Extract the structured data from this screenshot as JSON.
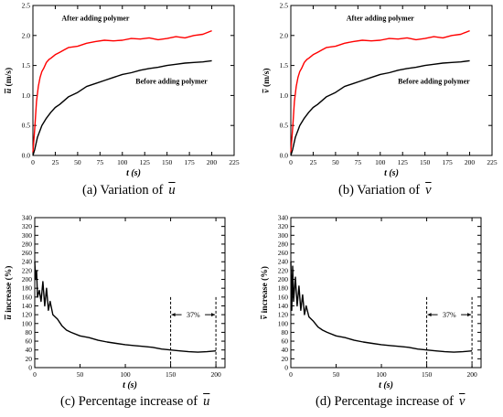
{
  "colors": {
    "before": "#000000",
    "after": "#ff0000",
    "axis": "#000000"
  },
  "captions": {
    "a": {
      "text": "(a) Variation of",
      "sym": "u"
    },
    "b": {
      "text": "(b) Variation of",
      "sym": "v"
    },
    "c": {
      "text": "(c) Percentage increase of",
      "sym": "u"
    },
    "d": {
      "text": "(d) Percentage increase of",
      "sym": "v"
    }
  },
  "chart_data": [
    {
      "id": "a",
      "type": "line",
      "xlabel": "t (s)",
      "ylabel": "ū (m/s)",
      "ylabel_sym": "u",
      "ylabel_rest": " (m/s)",
      "xlim": [
        0,
        225
      ],
      "ylim": [
        0,
        2.5
      ],
      "xticks": [
        0,
        25,
        50,
        75,
        100,
        125,
        150,
        175,
        200,
        225
      ],
      "yticks": [
        0.0,
        0.5,
        1.0,
        1.5,
        2.0,
        2.5
      ],
      "series": [
        {
          "name": "After adding polymer",
          "color": "#ff0000",
          "x": [
            0,
            2,
            4,
            6,
            8,
            10,
            12,
            15,
            18,
            20,
            25,
            30,
            35,
            40,
            50,
            60,
            70,
            80,
            90,
            100,
            110,
            120,
            130,
            140,
            150,
            160,
            170,
            180,
            190,
            200
          ],
          "y": [
            0.05,
            0.45,
            0.9,
            1.15,
            1.3,
            1.4,
            1.45,
            1.55,
            1.6,
            1.62,
            1.68,
            1.72,
            1.76,
            1.8,
            1.82,
            1.87,
            1.9,
            1.92,
            1.91,
            1.92,
            1.95,
            1.94,
            1.96,
            1.93,
            1.95,
            1.98,
            1.96,
            2.0,
            2.02,
            2.08
          ]
        },
        {
          "name": "Before adding polymer",
          "color": "#000000",
          "x": [
            0,
            2,
            5,
            10,
            15,
            20,
            25,
            30,
            40,
            50,
            60,
            70,
            80,
            90,
            100,
            110,
            120,
            130,
            140,
            150,
            160,
            170,
            180,
            190,
            200
          ],
          "y": [
            0.0,
            0.1,
            0.3,
            0.5,
            0.62,
            0.72,
            0.8,
            0.85,
            0.98,
            1.05,
            1.15,
            1.2,
            1.25,
            1.3,
            1.35,
            1.38,
            1.42,
            1.45,
            1.47,
            1.5,
            1.52,
            1.54,
            1.55,
            1.56,
            1.58
          ]
        }
      ],
      "annotations": [
        {
          "text": "After adding polymer",
          "x": 70,
          "y": 2.25
        },
        {
          "text": "Before adding polymer",
          "x": 155,
          "y": 1.2
        }
      ]
    },
    {
      "id": "b",
      "type": "line",
      "xlabel": "t (s)",
      "ylabel": "v̄ (m/s)",
      "ylabel_sym": "v",
      "ylabel_rest": " (m/s)",
      "xlim": [
        0,
        225
      ],
      "ylim": [
        0,
        2.5
      ],
      "xticks": [
        0,
        25,
        50,
        75,
        100,
        125,
        150,
        175,
        200,
        225
      ],
      "yticks": [
        0.0,
        0.5,
        1.0,
        1.5,
        2.0,
        2.5
      ],
      "series": [
        {
          "name": "After adding polymer",
          "color": "#ff0000",
          "x": [
            0,
            2,
            4,
            6,
            8,
            10,
            12,
            15,
            18,
            20,
            25,
            30,
            35,
            40,
            50,
            60,
            70,
            80,
            90,
            100,
            110,
            120,
            130,
            140,
            150,
            160,
            170,
            180,
            190,
            200
          ],
          "y": [
            0.05,
            0.45,
            0.9,
            1.15,
            1.3,
            1.4,
            1.45,
            1.55,
            1.6,
            1.62,
            1.68,
            1.72,
            1.76,
            1.8,
            1.82,
            1.87,
            1.9,
            1.92,
            1.91,
            1.92,
            1.95,
            1.94,
            1.96,
            1.93,
            1.95,
            1.98,
            1.96,
            2.0,
            2.02,
            2.08
          ]
        },
        {
          "name": "Before adding polymer",
          "color": "#000000",
          "x": [
            0,
            2,
            5,
            10,
            15,
            20,
            25,
            30,
            40,
            50,
            60,
            70,
            80,
            90,
            100,
            110,
            120,
            130,
            140,
            150,
            160,
            170,
            180,
            190,
            200
          ],
          "y": [
            0.0,
            0.1,
            0.3,
            0.5,
            0.62,
            0.72,
            0.8,
            0.85,
            0.98,
            1.05,
            1.15,
            1.2,
            1.25,
            1.3,
            1.35,
            1.38,
            1.42,
            1.45,
            1.47,
            1.5,
            1.52,
            1.54,
            1.55,
            1.56,
            1.58
          ]
        }
      ],
      "annotations": [
        {
          "text": "After adding polymer",
          "x": 100,
          "y": 2.25
        },
        {
          "text": "Before adding polymer",
          "x": 160,
          "y": 1.2
        }
      ]
    },
    {
      "id": "c",
      "type": "line",
      "xlabel": "t (s)",
      "ylabel": "ū increase (%)",
      "ylabel_sym": "u",
      "ylabel_rest": " increase (%)",
      "xlim": [
        0,
        210
      ],
      "ylim": [
        0,
        340
      ],
      "xticks": [
        0,
        50,
        100,
        150,
        200
      ],
      "yticks": [
        0,
        20,
        40,
        60,
        80,
        100,
        120,
        140,
        160,
        180,
        200,
        220,
        240,
        260,
        280,
        300,
        320,
        340
      ],
      "series": [
        {
          "name": "",
          "color": "#000000",
          "x": [
            0,
            1,
            2,
            3,
            5,
            7,
            9,
            11,
            13,
            15,
            17,
            20,
            25,
            30,
            35,
            40,
            50,
            60,
            70,
            80,
            90,
            100,
            110,
            120,
            130,
            140,
            150,
            160,
            170,
            180,
            190,
            200
          ],
          "y": [
            240,
            200,
            220,
            160,
            175,
            150,
            195,
            140,
            180,
            130,
            150,
            120,
            110,
            95,
            85,
            80,
            72,
            68,
            62,
            58,
            55,
            52,
            50,
            48,
            46,
            42,
            40,
            38,
            36,
            35,
            36,
            38
          ]
        }
      ],
      "bracket": {
        "x1": 150,
        "x2": 200,
        "y": 120,
        "label": "37%"
      }
    },
    {
      "id": "d",
      "type": "line",
      "xlabel": "t (s)",
      "ylabel": "v̄ increase (%)",
      "ylabel_sym": "v",
      "ylabel_rest": " increase (%)",
      "xlim": [
        0,
        210
      ],
      "ylim": [
        0,
        340
      ],
      "xticks": [
        0,
        50,
        100,
        150,
        200
      ],
      "yticks": [
        0,
        20,
        40,
        60,
        80,
        100,
        120,
        140,
        160,
        180,
        200,
        220,
        240,
        260,
        280,
        300,
        320,
        340
      ],
      "series": [
        {
          "name": "",
          "color": "#000000",
          "x": [
            0,
            1,
            2,
            3,
            5,
            7,
            9,
            11,
            13,
            15,
            17,
            20,
            25,
            30,
            35,
            40,
            50,
            60,
            70,
            80,
            90,
            100,
            110,
            120,
            130,
            140,
            150,
            160,
            170,
            180,
            190,
            200
          ],
          "y": [
            240,
            130,
            230,
            150,
            205,
            140,
            185,
            130,
            165,
            120,
            140,
            115,
            105,
            92,
            85,
            80,
            72,
            68,
            62,
            58,
            55,
            52,
            50,
            48,
            46,
            42,
            40,
            38,
            36,
            35,
            36,
            38
          ]
        }
      ],
      "bracket": {
        "x1": 150,
        "x2": 200,
        "y": 120,
        "label": "37%"
      }
    }
  ]
}
